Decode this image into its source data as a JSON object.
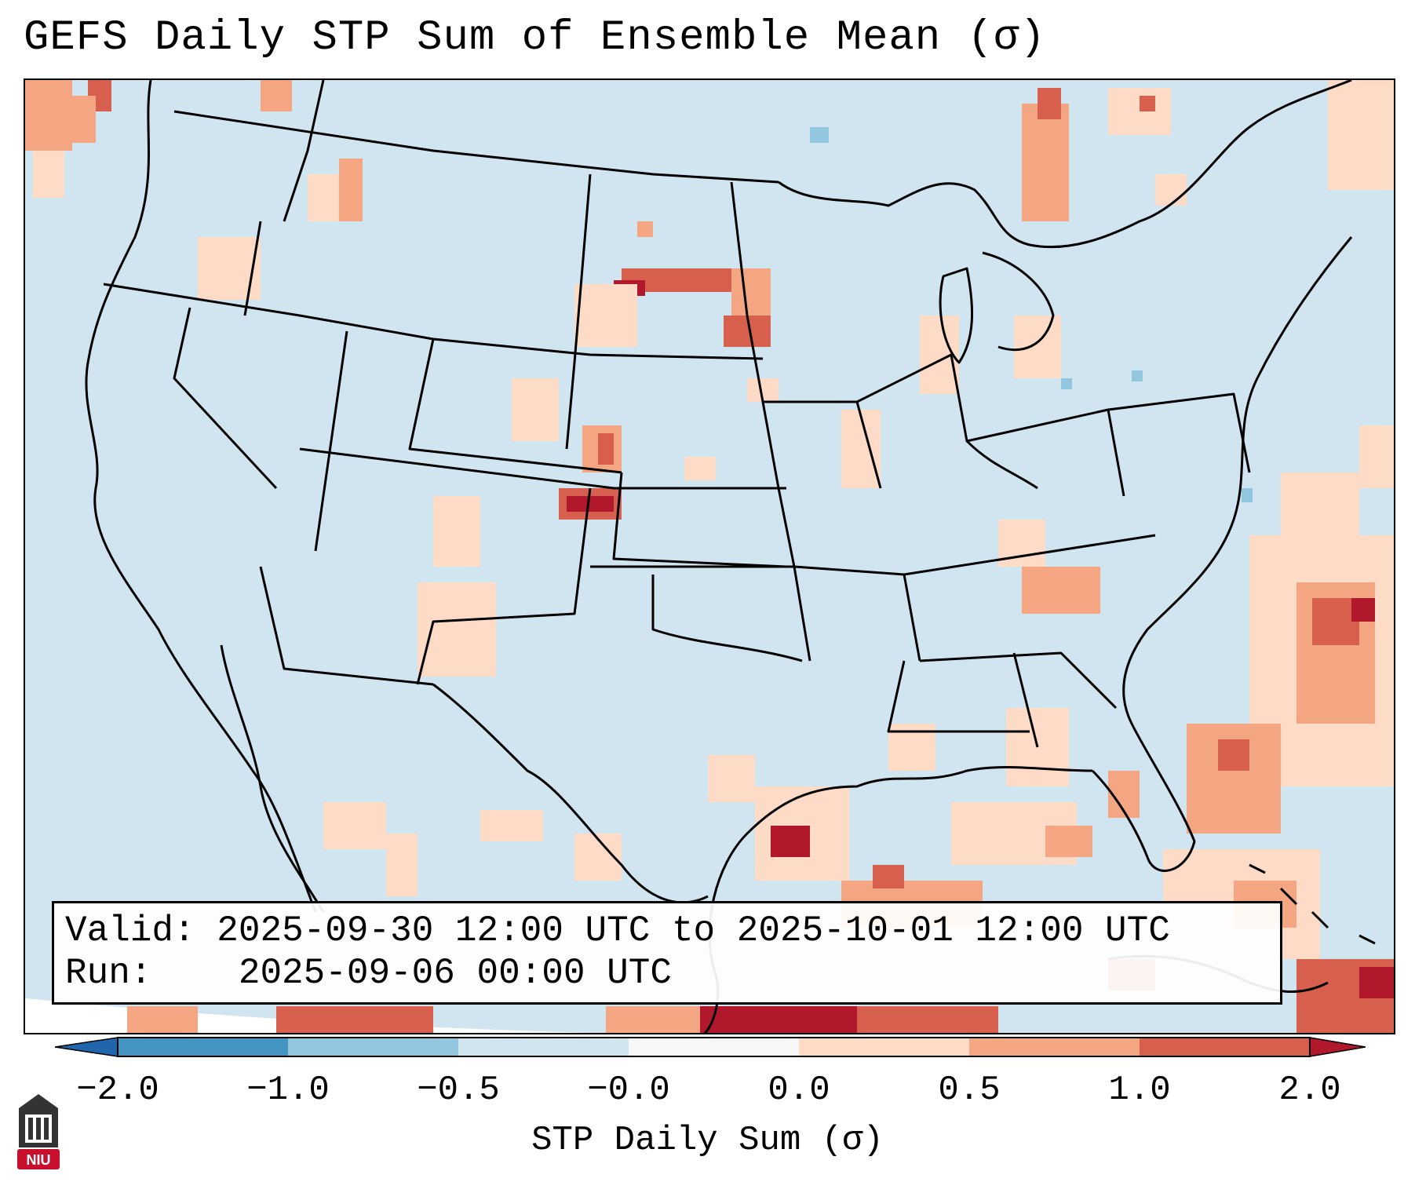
{
  "title": "GEFS Daily STP Sum of Ensemble Mean (σ)",
  "info": {
    "valid_label": "Valid:",
    "valid_value": "2025-09-30 12:00 UTC to 2025-10-01 12:00 UTC",
    "run_label": "Run:",
    "run_value": "2025-09-06 00:00 UTC"
  },
  "colorbar": {
    "label": "STP Daily Sum (σ)",
    "ticks": [
      "−2.0",
      "−1.0",
      "−0.5",
      "−0.0",
      "0.0",
      "0.5",
      "1.0",
      "2.0"
    ],
    "colors": [
      "#2166ac",
      "#4393c3",
      "#92c5de",
      "#d1e5f0",
      "#f7f7f7",
      "#fddbc7",
      "#f4a582",
      "#d6604d",
      "#b2182b"
    ]
  },
  "map": {
    "background_color": "#d1e5f0",
    "projection_edge_color": "#ffffff",
    "border_color": "#000000"
  },
  "logo": {
    "text": "NIU",
    "color": "#c8102e"
  }
}
